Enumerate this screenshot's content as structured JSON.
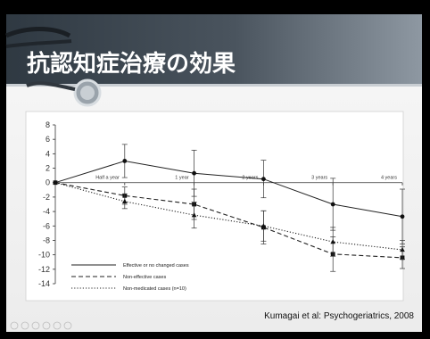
{
  "slide": {
    "title": "抗認知症治療の効果",
    "citation": "Kumagai et al: Psychogeriatrics, 2008",
    "colors": {
      "background": "#000000",
      "slide": "#f3f3f3",
      "header_dark": "#3c4650",
      "header_light": "#8b959f",
      "series_effective": "#111111",
      "series_noneffective": "#222222",
      "series_nonmedicated": "#333333"
    }
  },
  "chart_data": {
    "type": "line",
    "title": "",
    "xlabel": "",
    "ylabel": "",
    "ylim": [
      -14,
      8
    ],
    "yticks": [
      8,
      6,
      4,
      2,
      0,
      -2,
      -4,
      -6,
      -8,
      -10,
      -12,
      -14
    ],
    "xlim": [
      0,
      5
    ],
    "categories": [
      "Half a year",
      "1 year",
      "2 years",
      "3 years",
      "4 years"
    ],
    "x": [
      0,
      1,
      2,
      3,
      4,
      5
    ],
    "grid": false,
    "legend_position": "bottom-left",
    "series": [
      {
        "name": "Effective or no changed cases",
        "line_style": "solid",
        "marker": "circle",
        "values": [
          0,
          3.0,
          1.3,
          0.5,
          -3.0,
          -4.7
        ],
        "error": [
          0,
          2.3,
          3.2,
          2.6,
          3.6,
          3.8
        ]
      },
      {
        "name": "Non-effective cases",
        "line_style": "dashed",
        "marker": "square",
        "values": [
          0,
          -1.8,
          -3.0,
          -6.2,
          -9.9,
          -10.4
        ],
        "error": [
          0,
          1.2,
          2.1,
          2.3,
          2.4,
          1.5
        ]
      },
      {
        "name": "Non-medicated cases (n=10)",
        "line_style": "dotted",
        "marker": "triangle",
        "values": [
          0,
          -2.6,
          -4.5,
          -6.0,
          -8.2,
          -9.3
        ],
        "error": [
          0,
          1.0,
          1.8,
          2.1,
          2.0,
          1.3
        ]
      }
    ]
  }
}
